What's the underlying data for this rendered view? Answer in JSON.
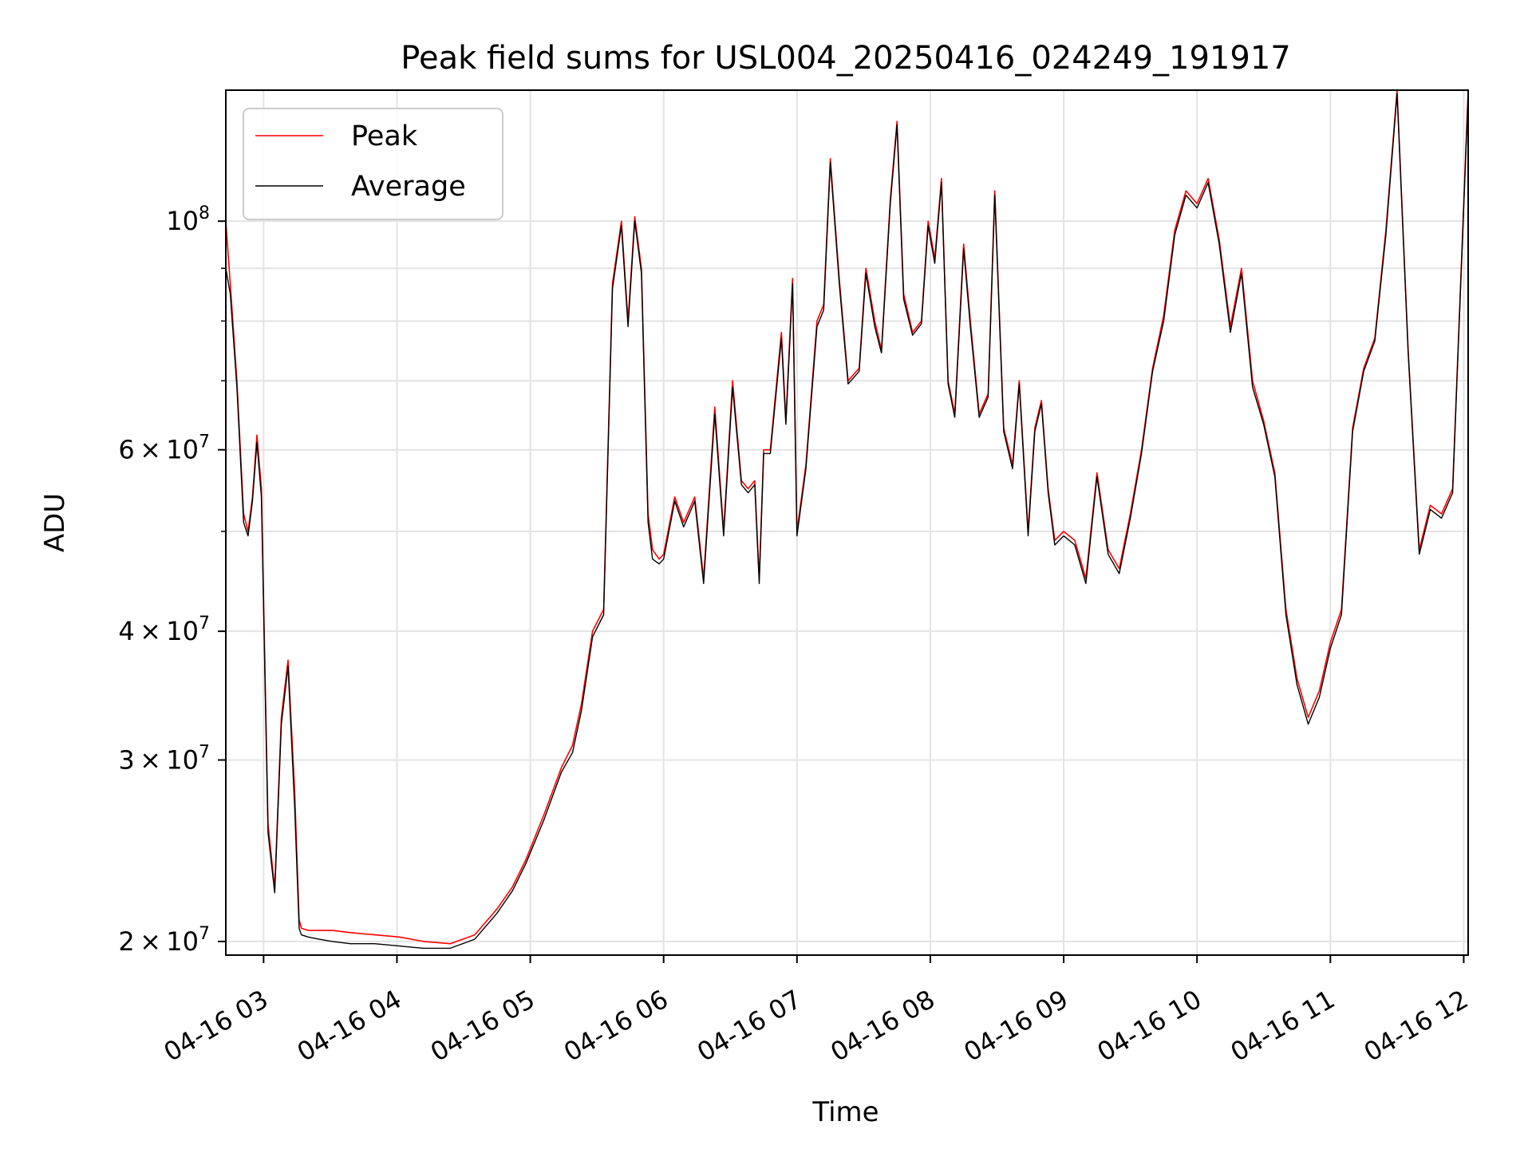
{
  "chart_data": {
    "type": "line",
    "title": "Peak field sums for USL004_20250416_024249_191917",
    "xlabel": "Time",
    "ylabel": "ADU",
    "yscale": "log",
    "grid": true,
    "legend_position": "top-left",
    "xlim": [
      "2025-04-16 02:43",
      "2025-04-16 12:02"
    ],
    "ylim": [
      19400000,
      134000000
    ],
    "x_ticks": [
      "04-16 03",
      "04-16 04",
      "04-16 05",
      "04-16 06",
      "04-16 07",
      "04-16 08",
      "04-16 09",
      "04-16 10",
      "04-16 11",
      "04-16 12"
    ],
    "y_ticks": [
      {
        "value": 20000000,
        "base": "2",
        "exp": "7"
      },
      {
        "value": 30000000,
        "base": "3",
        "exp": "7"
      },
      {
        "value": 40000000,
        "base": "4",
        "exp": "7"
      },
      {
        "value": 60000000,
        "base": "6",
        "exp": "7"
      },
      {
        "value": 100000000,
        "base": "",
        "exp": "8"
      }
    ],
    "series": [
      {
        "name": "Peak",
        "color": "#ff0000",
        "x": [
          "02:43",
          "02:45",
          "02:48",
          "02:51",
          "02:53",
          "02:55",
          "02:57",
          "02:59",
          "03:02",
          "03:05",
          "03:08",
          "03:11",
          "03:14",
          "03:16",
          "03:17",
          "03:20",
          "03:25",
          "03:31",
          "03:39",
          "03:50",
          "04:01",
          "04:12",
          "04:24",
          "04:35",
          "04:45",
          "04:52",
          "04:58",
          "05:06",
          "05:14",
          "05:19",
          "05:23",
          "05:28",
          "05:33",
          "05:37",
          "05:41",
          "05:44",
          "05:47",
          "05:50",
          "05:53",
          "05:55",
          "05:58",
          "06:00",
          "06:05",
          "06:09",
          "06:14",
          "06:18",
          "06:23",
          "06:27",
          "06:31",
          "06:35",
          "06:38",
          "06:41",
          "06:43",
          "06:45",
          "06:48",
          "06:53",
          "06:55",
          "06:58",
          "07:00",
          "07:04",
          "07:09",
          "07:12",
          "07:15",
          "07:19",
          "07:23",
          "07:28",
          "07:31",
          "07:35",
          "07:38",
          "07:42",
          "07:45",
          "07:48",
          "07:52",
          "07:56",
          "07:59",
          "08:02",
          "08:05",
          "08:08",
          "08:11",
          "08:15",
          "08:18",
          "08:22",
          "08:26",
          "08:29",
          "08:33",
          "08:37",
          "08:40",
          "08:44",
          "08:47",
          "08:50",
          "08:53",
          "08:56",
          "09:00",
          "09:05",
          "09:10",
          "09:15",
          "09:20",
          "09:25",
          "09:30",
          "09:35",
          "09:40",
          "09:45",
          "09:50",
          "09:55",
          "10:00",
          "10:05",
          "10:10",
          "10:15",
          "10:20",
          "10:25",
          "10:30",
          "10:35",
          "10:40",
          "10:45",
          "10:50",
          "10:55",
          "11:00",
          "11:05",
          "11:10",
          "11:15",
          "11:20",
          "11:25",
          "11:30",
          "11:35",
          "11:40",
          "11:45",
          "11:50",
          "11:55",
          "12:02"
        ],
        "values": [
          100000000,
          87000000,
          70000000,
          52000000,
          50000000,
          54000000,
          62000000,
          55000000,
          26000000,
          22500000,
          33000000,
          37500000,
          28000000,
          21000000,
          20600000,
          20500000,
          20500000,
          20500000,
          20400000,
          20300000,
          20200000,
          20000000,
          19900000,
          20300000,
          21500000,
          22600000,
          24000000,
          26500000,
          29500000,
          31000000,
          34000000,
          40000000,
          42000000,
          87000000,
          100000000,
          80000000,
          101000000,
          90000000,
          52000000,
          48000000,
          47000000,
          47500000,
          54000000,
          51000000,
          54000000,
          45000000,
          66000000,
          50000000,
          70000000,
          56000000,
          55000000,
          56000000,
          45000000,
          60000000,
          60000000,
          78000000,
          64000000,
          88000000,
          50000000,
          58000000,
          80000000,
          83000000,
          115000000,
          88000000,
          70000000,
          72000000,
          90000000,
          80000000,
          75000000,
          105000000,
          125000000,
          85000000,
          78000000,
          80000000,
          100000000,
          92000000,
          110000000,
          70000000,
          65000000,
          95000000,
          80000000,
          65000000,
          68000000,
          107000000,
          63000000,
          58000000,
          70000000,
          50000000,
          63000000,
          67000000,
          55000000,
          49000000,
          50000000,
          49000000,
          45000000,
          57000000,
          48000000,
          46000000,
          52000000,
          60000000,
          72000000,
          81000000,
          98000000,
          107000000,
          104000000,
          110000000,
          96000000,
          79000000,
          90000000,
          70000000,
          64000000,
          57000000,
          42000000,
          36000000,
          33000000,
          35000000,
          39000000,
          42000000,
          63000000,
          72000000,
          77000000,
          98000000,
          134000000,
          75000000,
          48000000,
          53000000,
          52000000,
          55000000,
          134000000
        ]
      },
      {
        "name": "Average",
        "color": "#000000",
        "x": [
          "02:43",
          "02:45",
          "02:48",
          "02:51",
          "02:53",
          "02:55",
          "02:57",
          "02:59",
          "03:02",
          "03:05",
          "03:08",
          "03:11",
          "03:14",
          "03:16",
          "03:17",
          "03:20",
          "03:25",
          "03:31",
          "03:39",
          "03:50",
          "04:01",
          "04:12",
          "04:24",
          "04:35",
          "04:45",
          "04:52",
          "04:58",
          "05:06",
          "05:14",
          "05:19",
          "05:23",
          "05:28",
          "05:33",
          "05:37",
          "05:41",
          "05:44",
          "05:47",
          "05:50",
          "05:53",
          "05:55",
          "05:58",
          "06:00",
          "06:05",
          "06:09",
          "06:14",
          "06:18",
          "06:23",
          "06:27",
          "06:31",
          "06:35",
          "06:38",
          "06:41",
          "06:43",
          "06:45",
          "06:48",
          "06:53",
          "06:55",
          "06:58",
          "07:00",
          "07:04",
          "07:09",
          "07:12",
          "07:15",
          "07:19",
          "07:23",
          "07:28",
          "07:31",
          "07:35",
          "07:38",
          "07:42",
          "07:45",
          "07:48",
          "07:52",
          "07:56",
          "07:59",
          "08:02",
          "08:05",
          "08:08",
          "08:11",
          "08:15",
          "08:18",
          "08:22",
          "08:26",
          "08:29",
          "08:33",
          "08:37",
          "08:40",
          "08:44",
          "08:47",
          "08:50",
          "08:53",
          "08:56",
          "09:00",
          "09:05",
          "09:10",
          "09:15",
          "09:20",
          "09:25",
          "09:30",
          "09:35",
          "09:40",
          "09:45",
          "09:50",
          "09:55",
          "10:00",
          "10:05",
          "10:10",
          "10:15",
          "10:20",
          "10:25",
          "10:30",
          "10:35",
          "10:40",
          "10:45",
          "10:50",
          "10:55",
          "11:00",
          "11:05",
          "11:10",
          "11:15",
          "11:20",
          "11:25",
          "11:30",
          "11:35",
          "11:40",
          "11:45",
          "11:50",
          "11:55",
          "12:02"
        ],
        "values": [
          90000000,
          85000000,
          69000000,
          51000000,
          49500000,
          53500000,
          61000000,
          54000000,
          25500000,
          22300000,
          32500000,
          37000000,
          27000000,
          20600000,
          20300000,
          20200000,
          20100000,
          20000000,
          19900000,
          19900000,
          19800000,
          19700000,
          19700000,
          20100000,
          21300000,
          22400000,
          23800000,
          26200000,
          29200000,
          30500000,
          33500000,
          39500000,
          41500000,
          86000000,
          99000000,
          79000000,
          100000000,
          89000000,
          51000000,
          47000000,
          46500000,
          47000000,
          53500000,
          50500000,
          53500000,
          44500000,
          65000000,
          49500000,
          69000000,
          55500000,
          54500000,
          55500000,
          44500000,
          59500000,
          59500000,
          77000000,
          63500000,
          87000000,
          49500000,
          57500000,
          79000000,
          82000000,
          114000000,
          87000000,
          69500000,
          71500000,
          89000000,
          79000000,
          74500000,
          104000000,
          124000000,
          84000000,
          77500000,
          79500000,
          99000000,
          91000000,
          109000000,
          69500000,
          64500000,
          94000000,
          79000000,
          64500000,
          67500000,
          106000000,
          62500000,
          57500000,
          69500000,
          49500000,
          62500000,
          66500000,
          54500000,
          48500000,
          49500000,
          48500000,
          44500000,
          56500000,
          47500000,
          45500000,
          51500000,
          59500000,
          71500000,
          80000000,
          97000000,
          106000000,
          103000000,
          109000000,
          95000000,
          78000000,
          89000000,
          69000000,
          63500000,
          56500000,
          41500000,
          35500000,
          32500000,
          34500000,
          38500000,
          41500000,
          62500000,
          71500000,
          76500000,
          97000000,
          133000000,
          74500000,
          47500000,
          52500000,
          51500000,
          54500000,
          133000000
        ]
      }
    ]
  }
}
